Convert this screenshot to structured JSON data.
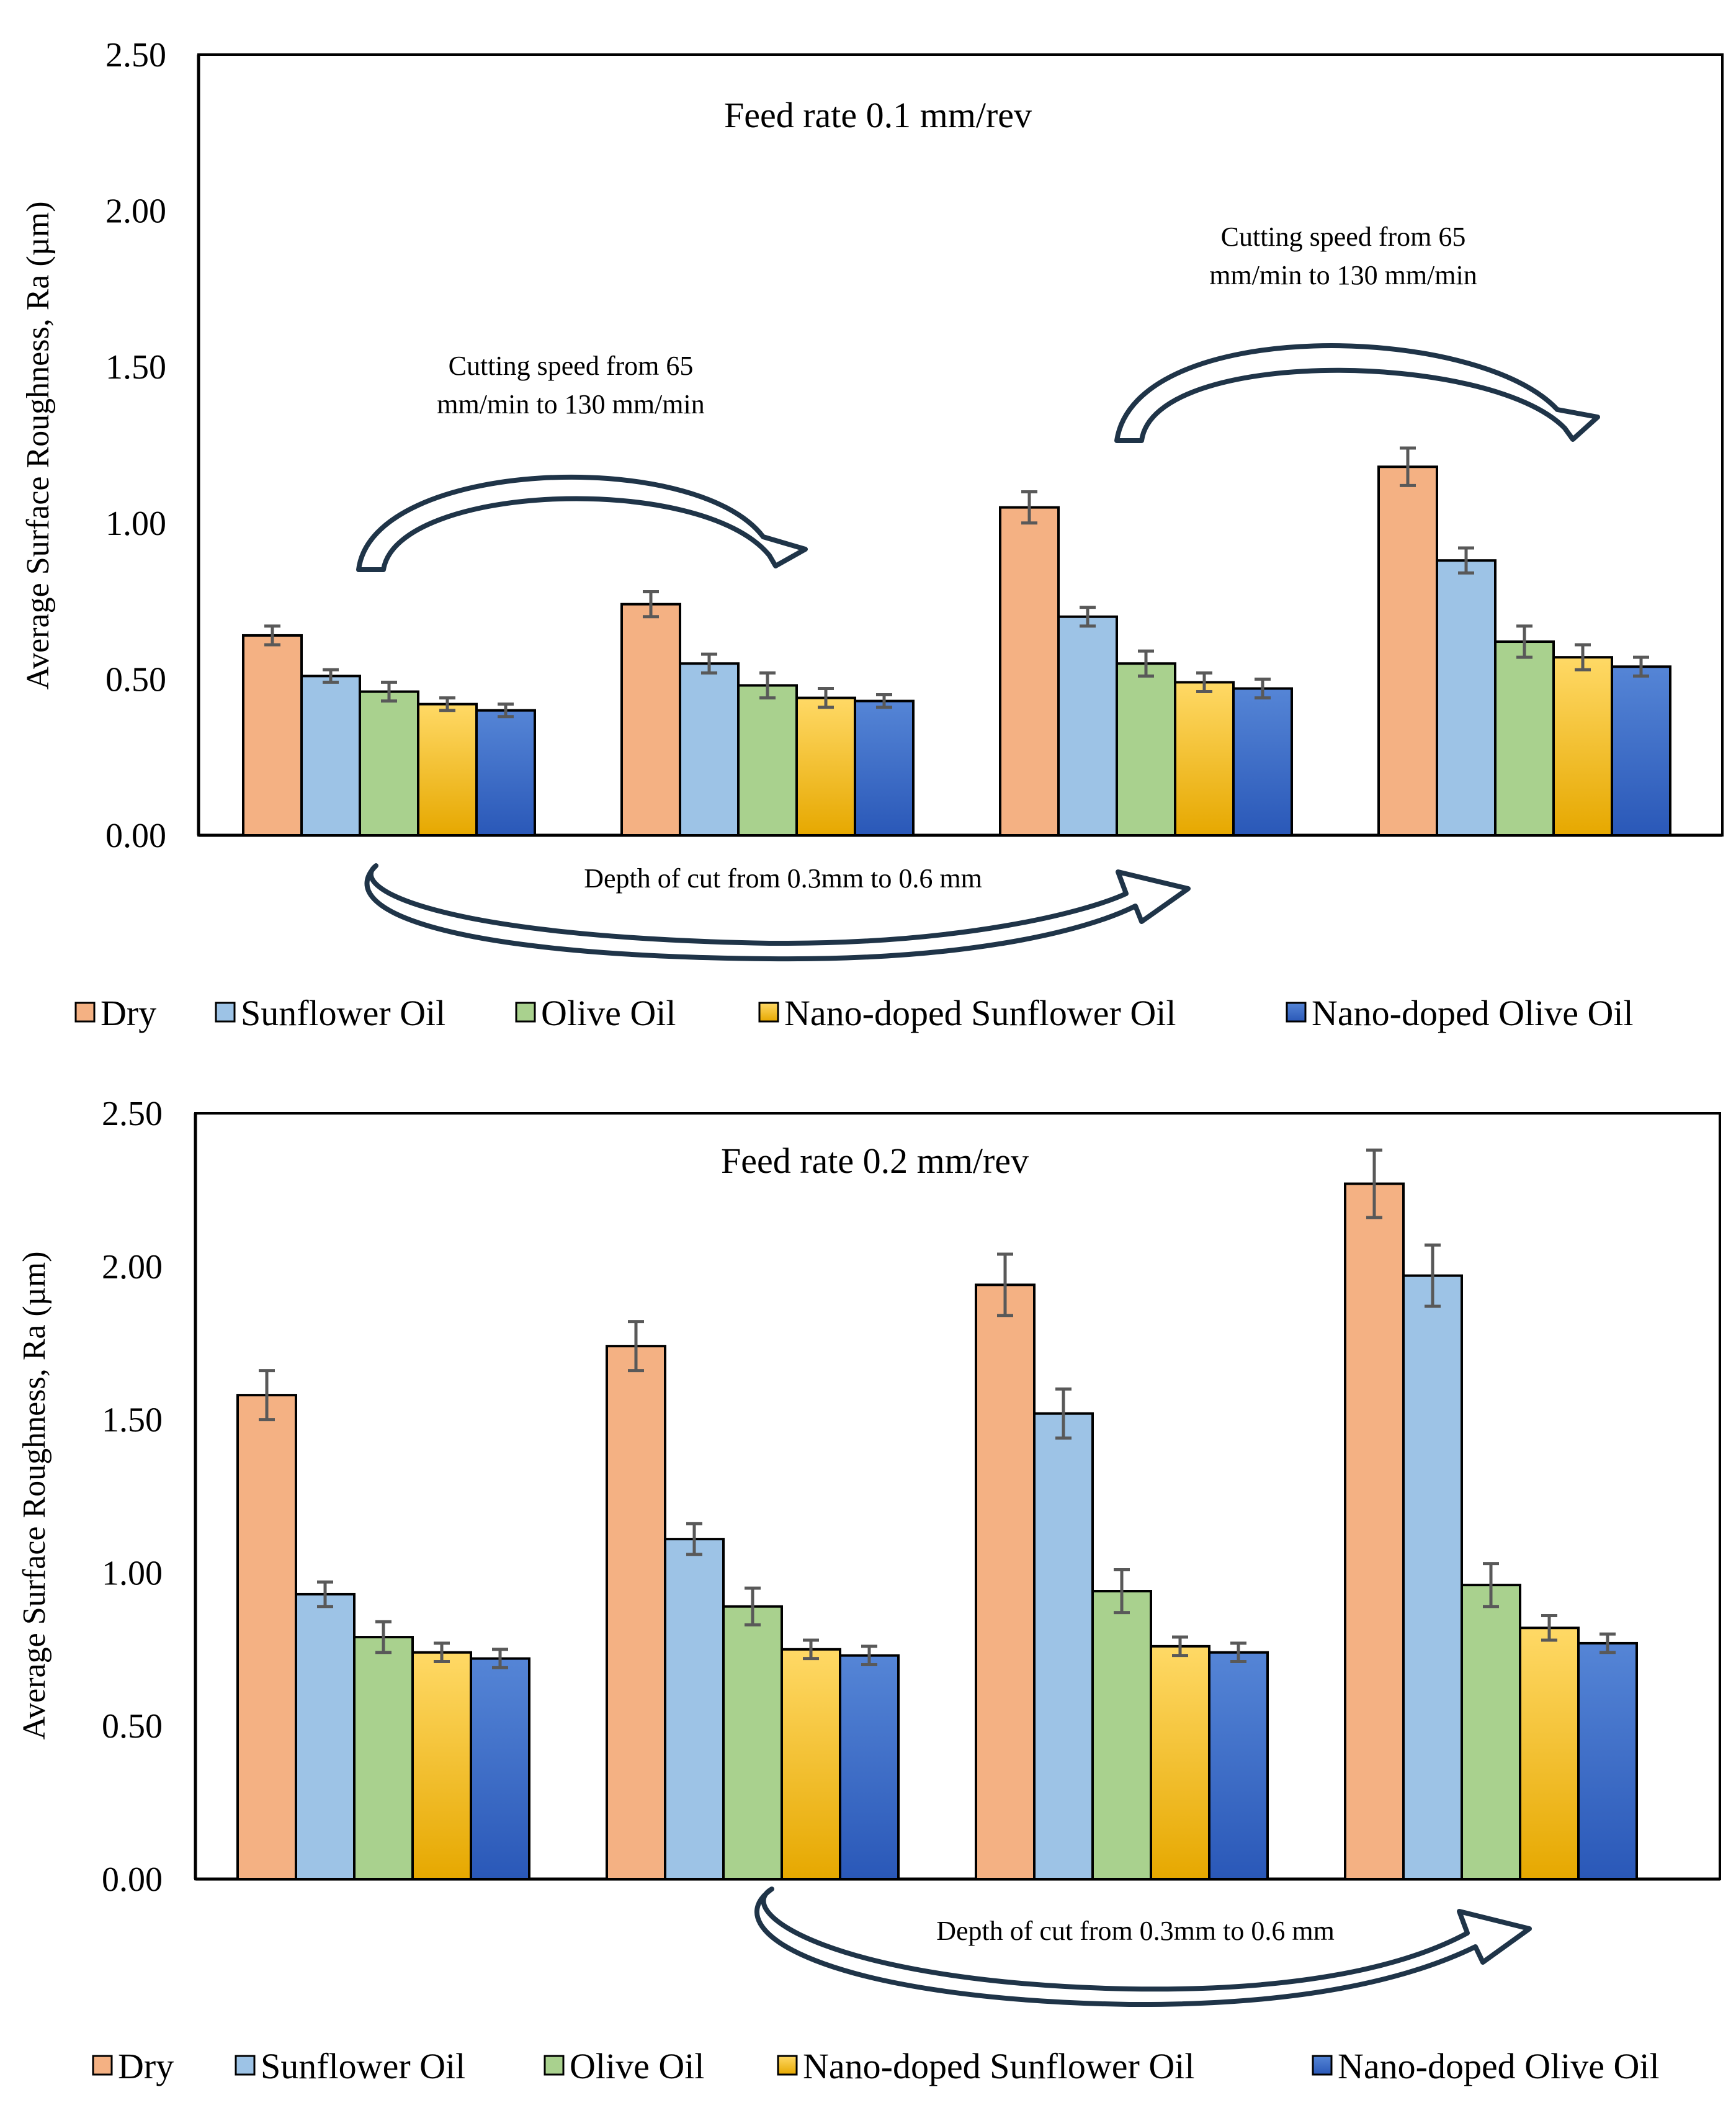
{
  "chart_data": [
    {
      "type": "bar",
      "title": "Feed rate 0.1 mm/rev",
      "ylabel": "Average Surface Roughness, Ra (µm)",
      "xlabel": "",
      "ylim": [
        0,
        2.5
      ],
      "yticks": [
        "0.00",
        "0.50",
        "1.00",
        "1.50",
        "2.00",
        "2.50"
      ],
      "grid": false,
      "legend_position": "bottom",
      "groups": 4,
      "series": [
        {
          "name": "Dry",
          "values": [
            0.64,
            0.74,
            1.05,
            1.18
          ],
          "errors": [
            0.03,
            0.04,
            0.05,
            0.06
          ]
        },
        {
          "name": "Sunflower Oil",
          "values": [
            0.51,
            0.55,
            0.7,
            0.88
          ],
          "errors": [
            0.02,
            0.03,
            0.03,
            0.04
          ]
        },
        {
          "name": "Olive Oil",
          "values": [
            0.46,
            0.48,
            0.55,
            0.62
          ],
          "errors": [
            0.03,
            0.04,
            0.04,
            0.05
          ]
        },
        {
          "name": "Nano-doped Sunflower Oil",
          "values": [
            0.42,
            0.44,
            0.49,
            0.57
          ],
          "errors": [
            0.02,
            0.03,
            0.03,
            0.04
          ]
        },
        {
          "name": "Nano-doped Olive Oil",
          "values": [
            0.4,
            0.43,
            0.47,
            0.54
          ],
          "errors": [
            0.02,
            0.02,
            0.03,
            0.03
          ]
        }
      ],
      "annotations": {
        "speed_1_line1": "Cutting speed from 65",
        "speed_1_line2": "mm/min to 130 mm/min",
        "speed_2_line1": "Cutting speed from 65",
        "speed_2_line2": "mm/min to 130 mm/min",
        "depth": "Depth of cut from 0.3mm to 0.6 mm"
      }
    },
    {
      "type": "bar",
      "title": "Feed rate 0.2 mm/rev",
      "ylabel": "Average Surface Roughness, Ra (µm)",
      "xlabel": "",
      "ylim": [
        0,
        2.5
      ],
      "yticks": [
        "0.00",
        "0.50",
        "1.00",
        "1.50",
        "2.00",
        "2.50"
      ],
      "grid": false,
      "legend_position": "bottom",
      "groups": 4,
      "series": [
        {
          "name": "Dry",
          "values": [
            1.58,
            1.74,
            1.94,
            2.27
          ],
          "errors": [
            0.08,
            0.08,
            0.1,
            0.11
          ]
        },
        {
          "name": "Sunflower Oil",
          "values": [
            0.93,
            1.11,
            1.52,
            1.97
          ],
          "errors": [
            0.04,
            0.05,
            0.08,
            0.1
          ]
        },
        {
          "name": "Olive Oil",
          "values": [
            0.79,
            0.89,
            0.94,
            0.96
          ],
          "errors": [
            0.05,
            0.06,
            0.07,
            0.07
          ]
        },
        {
          "name": "Nano-doped Sunflower Oil",
          "values": [
            0.74,
            0.75,
            0.76,
            0.82
          ],
          "errors": [
            0.03,
            0.03,
            0.03,
            0.04
          ]
        },
        {
          "name": "Nano-doped Olive Oil",
          "values": [
            0.72,
            0.73,
            0.74,
            0.77
          ],
          "errors": [
            0.03,
            0.03,
            0.03,
            0.03
          ]
        }
      ],
      "annotations": {
        "depth": "Depth of cut from 0.3mm to 0.6 mm"
      }
    }
  ],
  "colors": {
    "dry": "#f4b183",
    "sunflower": "#9dc3e6",
    "olive": "#a9d18e",
    "nano_sunflower_top": "#ffd966",
    "nano_sunflower_bottom": "#e6a800",
    "nano_olive_top": "#4f7fd0",
    "nano_olive_bottom": "#2a58b8",
    "arrow_stroke": "#1f3448",
    "error_bar": "#595959"
  }
}
